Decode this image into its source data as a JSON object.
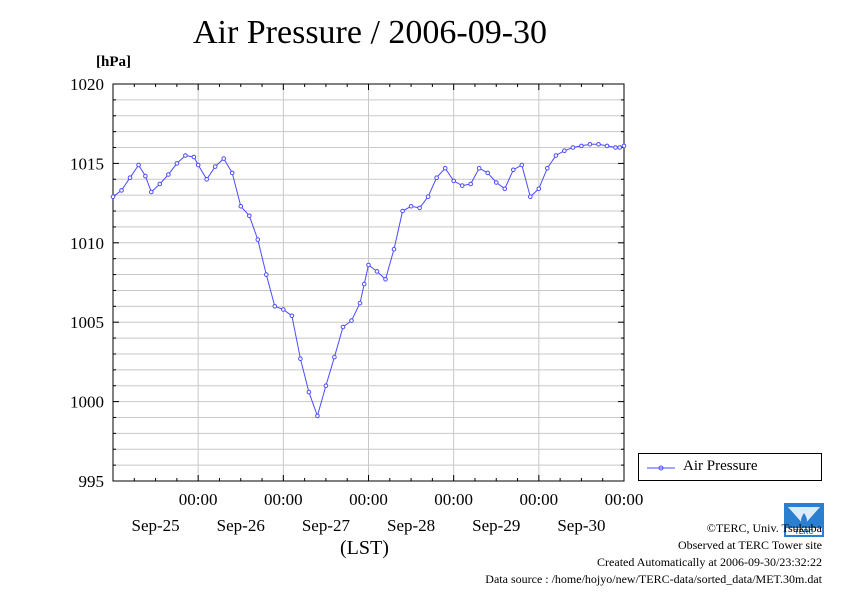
{
  "header": {
    "title": "Air Pressure / 2006-09-30",
    "unit": "[hPa]"
  },
  "legend": {
    "label": "Air Pressure"
  },
  "footer": {
    "xaxis_label": "(LST)",
    "copyright": "©TERC, Univ. Tsukuba",
    "observed": "Observed at TERC Tower site",
    "created": "Created Automatically at 2006-09-30/23:32:22",
    "source": "Data source : /home/hojyo/new/TERC-data/sorted_data/MET.30m.dat"
  },
  "colors": {
    "series": "#4b4bff",
    "grid": "#c8c8c8",
    "logo": "#2a7fd0"
  },
  "chart_data": {
    "type": "line",
    "title": "Air Pressure / 2006-09-30",
    "ylabel": "[hPa]",
    "xlabel": "(LST)",
    "ylim": [
      995,
      1020
    ],
    "xlim_days": [
      0,
      6
    ],
    "yticks": [
      "1020",
      "1015",
      "1010",
      "1005",
      "1000",
      "995"
    ],
    "xticks": [
      {
        "time": "00:00",
        "date": "Sep-25"
      },
      {
        "time": "00:00",
        "date": "Sep-26"
      },
      {
        "time": "00:00",
        "date": "Sep-27"
      },
      {
        "time": "00:00",
        "date": "Sep-28"
      },
      {
        "time": "00:00",
        "date": "Sep-29"
      },
      {
        "time": "00:00",
        "date": "Sep-30"
      }
    ],
    "grid": true,
    "legend_position": "right",
    "series": [
      {
        "name": "Air Pressure",
        "x": [
          0,
          0.1,
          0.2,
          0.3,
          0.38,
          0.45,
          0.55,
          0.65,
          0.75,
          0.85,
          0.95,
          1.0,
          1.1,
          1.2,
          1.3,
          1.4,
          1.5,
          1.6,
          1.7,
          1.8,
          1.9,
          2.0,
          2.1,
          2.2,
          2.3,
          2.4,
          2.5,
          2.6,
          2.7,
          2.8,
          2.9,
          2.95,
          3.0,
          3.1,
          3.2,
          3.3,
          3.4,
          3.5,
          3.6,
          3.7,
          3.8,
          3.9,
          4.0,
          4.1,
          4.2,
          4.3,
          4.4,
          4.5,
          4.6,
          4.7,
          4.8,
          4.9,
          5.0,
          5.1,
          5.2,
          5.3,
          5.4,
          5.5,
          5.6,
          5.7,
          5.8,
          5.9,
          5.95,
          6.0
        ],
        "y": [
          1012.9,
          1013.3,
          1014.1,
          1014.9,
          1014.2,
          1013.2,
          1013.7,
          1014.3,
          1015.0,
          1015.5,
          1015.4,
          1014.9,
          1014.0,
          1014.8,
          1015.3,
          1014.4,
          1012.3,
          1011.7,
          1010.2,
          1008.0,
          1006.0,
          1005.8,
          1005.4,
          1002.7,
          1000.6,
          999.1,
          1001.0,
          1002.8,
          1004.7,
          1005.1,
          1006.2,
          1007.4,
          1008.6,
          1008.2,
          1007.7,
          1009.6,
          1012.0,
          1012.3,
          1012.2,
          1012.9,
          1014.1,
          1014.7,
          1013.9,
          1013.6,
          1013.7,
          1014.7,
          1014.4,
          1013.8,
          1013.4,
          1014.6,
          1014.9,
          1012.9,
          1013.4,
          1014.7,
          1015.5,
          1015.8,
          1016.0,
          1016.1,
          1016.2,
          1016.2,
          1016.1,
          1016.0,
          1016.0,
          1016.1
        ]
      }
    ]
  }
}
